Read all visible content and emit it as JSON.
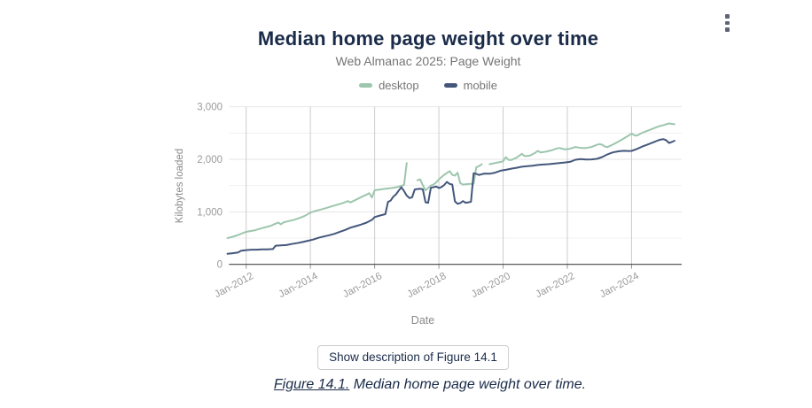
{
  "icons": {
    "context_menu": "vertical-ellipsis"
  },
  "description_button": {
    "label": "Show description of Figure 14.1"
  },
  "caption": {
    "link_text": "Figure 14.1.",
    "text": " Median home page weight over time."
  },
  "colors": {
    "title_text": "#1a2b49",
    "subtitle_text": "#757575",
    "axis_label": "#9a9a9a",
    "axis_title": "#8a8a8a",
    "axis_line": "#444444",
    "grid_vertical": "#cdcdcd",
    "grid_major": "#e6e6e6",
    "grid_minor": "#f1f1f1",
    "desktop": "#9dc6ae",
    "mobile": "#44577b"
  },
  "chart_data": {
    "type": "line",
    "title": "Median home page weight over time",
    "subtitle": "Web Almanac 2025: Page Weight",
    "xlabel": "Date",
    "ylabel": "Kilobytes loaded",
    "ylim": [
      0,
      3000
    ],
    "yticks": [
      0,
      1000,
      2000,
      3000
    ],
    "ytick_labels": [
      "0",
      "1,000",
      "2,000",
      "3,000"
    ],
    "y_minor_ticks": [
      500,
      1500,
      2500
    ],
    "xticks": [
      {
        "label": "Jan-2012",
        "year": 2012
      },
      {
        "label": "Jan-2014",
        "year": 2014
      },
      {
        "label": "Jan-2016",
        "year": 2016
      },
      {
        "label": "Jan-2018",
        "year": 2018
      },
      {
        "label": "Jan-2020",
        "year": 2020
      },
      {
        "label": "Jan-2022",
        "year": 2022
      },
      {
        "label": "Jan-2024",
        "year": 2024
      }
    ],
    "x_range_years": [
      2011.42,
      2025.42
    ],
    "grid": true,
    "legend_position": "top",
    "units": "KB",
    "series": [
      {
        "name": "desktop",
        "color": "#9dc6ae",
        "segments": [
          [
            [
              "2011-06",
              500
            ],
            [
              "2011-08",
              525
            ],
            [
              "2011-10",
              560
            ],
            [
              "2011-12",
              600
            ],
            [
              "2012-01",
              618
            ],
            [
              "2012-02",
              628
            ],
            [
              "2012-04",
              645
            ],
            [
              "2012-06",
              675
            ],
            [
              "2012-08",
              705
            ],
            [
              "2012-10",
              730
            ],
            [
              "2012-12",
              775
            ],
            [
              "2013-01",
              795
            ],
            [
              "2013-02",
              762
            ],
            [
              "2013-03",
              800
            ],
            [
              "2013-05",
              825
            ],
            [
              "2013-07",
              850
            ],
            [
              "2013-09",
              885
            ],
            [
              "2013-11",
              925
            ],
            [
              "2014-01",
              985
            ],
            [
              "2014-03",
              1020
            ],
            [
              "2014-05",
              1045
            ],
            [
              "2014-07",
              1075
            ],
            [
              "2014-09",
              1105
            ],
            [
              "2014-11",
              1135
            ],
            [
              "2015-01",
              1165
            ],
            [
              "2015-03",
              1205
            ],
            [
              "2015-04",
              1180
            ],
            [
              "2015-06",
              1230
            ],
            [
              "2015-08",
              1280
            ],
            [
              "2015-10",
              1330
            ],
            [
              "2015-11",
              1355
            ],
            [
              "2015-12",
              1272
            ],
            [
              "2016-01",
              1410
            ],
            [
              "2016-03",
              1425
            ],
            [
              "2016-05",
              1440
            ],
            [
              "2016-07",
              1450
            ],
            [
              "2016-09",
              1468
            ],
            [
              "2016-11",
              1495
            ],
            [
              "2016-12",
              1512
            ],
            [
              "2017-01",
              1930
            ]
          ],
          [
            [
              "2017-05",
              1600
            ],
            [
              "2017-06",
              1620
            ],
            [
              "2017-07",
              1505
            ],
            [
              "2017-08",
              1410
            ],
            [
              "2017-09",
              1455
            ],
            [
              "2017-10",
              1500
            ],
            [
              "2017-11",
              1520
            ],
            [
              "2017-12",
              1560
            ],
            [
              "2018-01",
              1620
            ],
            [
              "2018-03",
              1705
            ],
            [
              "2018-05",
              1775
            ],
            [
              "2018-06",
              1705
            ],
            [
              "2018-07",
              1690
            ],
            [
              "2018-08",
              1745
            ],
            [
              "2018-09",
              1545
            ],
            [
              "2018-10",
              1520
            ],
            [
              "2018-12",
              1530
            ],
            [
              "2019-02",
              1535
            ],
            [
              "2019-03",
              1850
            ],
            [
              "2019-04",
              1870
            ],
            [
              "2019-05",
              1905
            ]
          ],
          [
            [
              "2019-08",
              1908
            ],
            [
              "2019-10",
              1930
            ],
            [
              "2019-12",
              1950
            ],
            [
              "2020-01",
              1962
            ],
            [
              "2020-02",
              2040
            ],
            [
              "2020-03",
              1990
            ],
            [
              "2020-04",
              1985
            ],
            [
              "2020-06",
              2030
            ],
            [
              "2020-08",
              2105
            ],
            [
              "2020-09",
              2060
            ],
            [
              "2020-11",
              2070
            ],
            [
              "2021-01",
              2125
            ],
            [
              "2021-02",
              2160
            ],
            [
              "2021-03",
              2130
            ],
            [
              "2021-05",
              2145
            ],
            [
              "2021-07",
              2170
            ],
            [
              "2021-09",
              2205
            ],
            [
              "2021-10",
              2215
            ],
            [
              "2021-12",
              2190
            ],
            [
              "2022-02",
              2200
            ],
            [
              "2022-04",
              2235
            ],
            [
              "2022-06",
              2215
            ],
            [
              "2022-08",
              2215
            ],
            [
              "2022-10",
              2235
            ],
            [
              "2022-12",
              2275
            ],
            [
              "2023-01",
              2290
            ],
            [
              "2023-02",
              2278
            ],
            [
              "2023-03",
              2242
            ],
            [
              "2023-04",
              2232
            ],
            [
              "2023-06",
              2280
            ],
            [
              "2023-08",
              2335
            ],
            [
              "2023-10",
              2395
            ],
            [
              "2023-12",
              2455
            ],
            [
              "2024-01",
              2490
            ],
            [
              "2024-02",
              2458
            ],
            [
              "2024-03",
              2452
            ],
            [
              "2024-05",
              2505
            ],
            [
              "2024-07",
              2545
            ],
            [
              "2024-09",
              2585
            ],
            [
              "2024-11",
              2625
            ],
            [
              "2025-01",
              2652
            ],
            [
              "2025-03",
              2682
            ],
            [
              "2025-05",
              2668
            ]
          ]
        ]
      },
      {
        "name": "mobile",
        "color": "#44577b",
        "segments": [
          [
            [
              "2011-06",
              200
            ],
            [
              "2011-08",
              212
            ],
            [
              "2011-10",
              225
            ],
            [
              "2011-11",
              258
            ],
            [
              "2012-01",
              272
            ],
            [
              "2012-03",
              280
            ],
            [
              "2012-05",
              280
            ],
            [
              "2012-07",
              285
            ],
            [
              "2012-09",
              286
            ],
            [
              "2012-11",
              292
            ],
            [
              "2012-12",
              355
            ],
            [
              "2013-02",
              360
            ],
            [
              "2013-04",
              368
            ],
            [
              "2013-06",
              388
            ],
            [
              "2013-08",
              405
            ],
            [
              "2013-10",
              425
            ],
            [
              "2013-12",
              448
            ],
            [
              "2014-02",
              472
            ],
            [
              "2014-04",
              505
            ],
            [
              "2014-06",
              530
            ],
            [
              "2014-08",
              555
            ],
            [
              "2014-10",
              582
            ],
            [
              "2014-12",
              620
            ],
            [
              "2015-02",
              655
            ],
            [
              "2015-04",
              700
            ],
            [
              "2015-06",
              728
            ],
            [
              "2015-08",
              758
            ],
            [
              "2015-10",
              795
            ],
            [
              "2015-12",
              848
            ],
            [
              "2016-01",
              900
            ],
            [
              "2016-03",
              930
            ],
            [
              "2016-05",
              955
            ],
            [
              "2016-06",
              1190
            ],
            [
              "2016-07",
              1215
            ],
            [
              "2016-08",
              1290
            ],
            [
              "2016-09",
              1335
            ],
            [
              "2016-10",
              1405
            ],
            [
              "2016-11",
              1468
            ],
            [
              "2016-12",
              1395
            ],
            [
              "2017-01",
              1310
            ],
            [
              "2017-02",
              1262
            ],
            [
              "2017-03",
              1278
            ],
            [
              "2017-04",
              1428
            ],
            [
              "2017-06",
              1440
            ],
            [
              "2017-07",
              1428
            ],
            [
              "2017-08",
              1182
            ],
            [
              "2017-09",
              1172
            ],
            [
              "2017-10",
              1458
            ],
            [
              "2017-11",
              1470
            ],
            [
              "2017-12",
              1482
            ],
            [
              "2018-01",
              1455
            ],
            [
              "2018-02",
              1472
            ],
            [
              "2018-03",
              1512
            ],
            [
              "2018-04",
              1568
            ],
            [
              "2018-05",
              1532
            ],
            [
              "2018-06",
              1520
            ],
            [
              "2018-07",
              1198
            ],
            [
              "2018-08",
              1152
            ],
            [
              "2018-09",
              1168
            ],
            [
              "2018-10",
              1205
            ],
            [
              "2018-11",
              1172
            ],
            [
              "2018-12",
              1182
            ],
            [
              "2019-01",
              1192
            ],
            [
              "2019-02",
              1735
            ],
            [
              "2019-03",
              1722
            ],
            [
              "2019-04",
              1702
            ],
            [
              "2019-06",
              1728
            ],
            [
              "2019-08",
              1725
            ],
            [
              "2019-10",
              1745
            ],
            [
              "2019-12",
              1782
            ],
            [
              "2020-02",
              1800
            ],
            [
              "2020-04",
              1822
            ],
            [
              "2020-06",
              1838
            ],
            [
              "2020-08",
              1858
            ],
            [
              "2020-10",
              1868
            ],
            [
              "2020-12",
              1878
            ],
            [
              "2021-02",
              1892
            ],
            [
              "2021-04",
              1900
            ],
            [
              "2021-06",
              1908
            ],
            [
              "2021-08",
              1918
            ],
            [
              "2021-10",
              1928
            ],
            [
              "2021-12",
              1940
            ],
            [
              "2022-02",
              1952
            ],
            [
              "2022-04",
              1992
            ],
            [
              "2022-06",
              2005
            ],
            [
              "2022-08",
              1995
            ],
            [
              "2022-10",
              1998
            ],
            [
              "2022-12",
              2008
            ],
            [
              "2023-02",
              2042
            ],
            [
              "2023-04",
              2095
            ],
            [
              "2023-06",
              2132
            ],
            [
              "2023-08",
              2152
            ],
            [
              "2023-10",
              2162
            ],
            [
              "2023-12",
              2158
            ],
            [
              "2024-01",
              2160
            ],
            [
              "2024-03",
              2198
            ],
            [
              "2024-05",
              2242
            ],
            [
              "2024-07",
              2282
            ],
            [
              "2024-09",
              2322
            ],
            [
              "2024-11",
              2362
            ],
            [
              "2024-12",
              2378
            ],
            [
              "2025-01",
              2382
            ],
            [
              "2025-02",
              2360
            ],
            [
              "2025-03",
              2312
            ],
            [
              "2025-04",
              2328
            ],
            [
              "2025-05",
              2352
            ]
          ]
        ]
      }
    ]
  }
}
